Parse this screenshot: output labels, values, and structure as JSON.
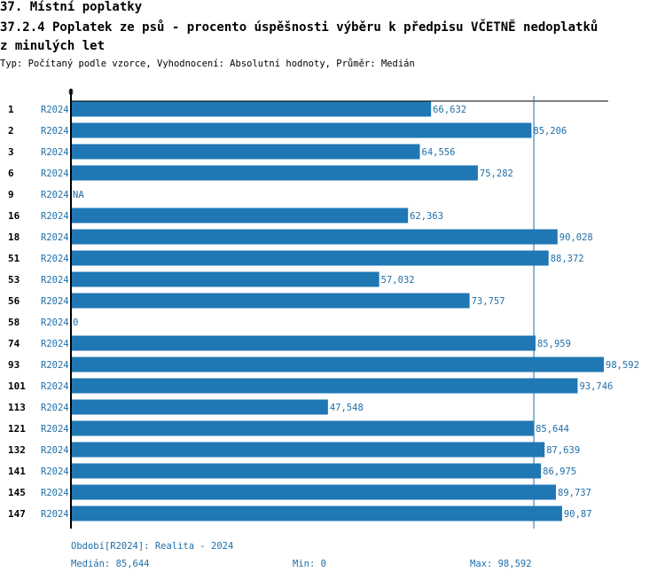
{
  "header": {
    "title": "37. Místní poplatky",
    "subtitle_line1": "37.2.4 Poplatek ze psů - procento úspěšnosti výběru k předpisu VČETNĚ nedoplatků",
    "subtitle_line2": "z minulých let",
    "description": "Typ: Počítaný podle vzorce, Vyhodnocení: Absolutní hodnoty, Průměr: Medián"
  },
  "chart_data": {
    "type": "bar",
    "orientation": "horizontal",
    "x_tick_labels": [
      "0"
    ],
    "xlim": [
      0,
      98.592
    ],
    "median": 85.644,
    "grid": false,
    "colors": {
      "bar": "#1f77b4",
      "label": "#1f6fa8",
      "axis": "#000000",
      "median_line": "#1f6fa8"
    },
    "rows": [
      {
        "id": "1",
        "period": "R2024",
        "value": 66.632,
        "label": "66,632"
      },
      {
        "id": "2",
        "period": "R2024",
        "value": 85.206,
        "label": "85,206"
      },
      {
        "id": "3",
        "period": "R2024",
        "value": 64.556,
        "label": "64,556"
      },
      {
        "id": "6",
        "period": "R2024",
        "value": 75.282,
        "label": "75,282"
      },
      {
        "id": "9",
        "period": "R2024",
        "value": null,
        "label": "NA"
      },
      {
        "id": "16",
        "period": "R2024",
        "value": 62.363,
        "label": "62,363"
      },
      {
        "id": "18",
        "period": "R2024",
        "value": 90.028,
        "label": "90,028"
      },
      {
        "id": "51",
        "period": "R2024",
        "value": 88.372,
        "label": "88,372"
      },
      {
        "id": "53",
        "period": "R2024",
        "value": 57.032,
        "label": "57,032"
      },
      {
        "id": "56",
        "period": "R2024",
        "value": 73.757,
        "label": "73,757"
      },
      {
        "id": "58",
        "period": "R2024",
        "value": 0,
        "label": "0"
      },
      {
        "id": "74",
        "period": "R2024",
        "value": 85.959,
        "label": "85,959"
      },
      {
        "id": "93",
        "period": "R2024",
        "value": 98.592,
        "label": "98,592"
      },
      {
        "id": "101",
        "period": "R2024",
        "value": 93.746,
        "label": "93,746"
      },
      {
        "id": "113",
        "period": "R2024",
        "value": 47.548,
        "label": "47,548"
      },
      {
        "id": "121",
        "period": "R2024",
        "value": 85.644,
        "label": "85,644"
      },
      {
        "id": "132",
        "period": "R2024",
        "value": 87.639,
        "label": "87,639"
      },
      {
        "id": "141",
        "period": "R2024",
        "value": 86.975,
        "label": "86,975"
      },
      {
        "id": "145",
        "period": "R2024",
        "value": 89.737,
        "label": "89,737"
      },
      {
        "id": "147",
        "period": "R2024",
        "value": 90.87,
        "label": "90,87"
      }
    ]
  },
  "footer": {
    "period": "Období[R2024]: Realita - 2024",
    "median": "Medián: 85,644",
    "min": "Min: 0",
    "max": "Max: 98,592"
  }
}
